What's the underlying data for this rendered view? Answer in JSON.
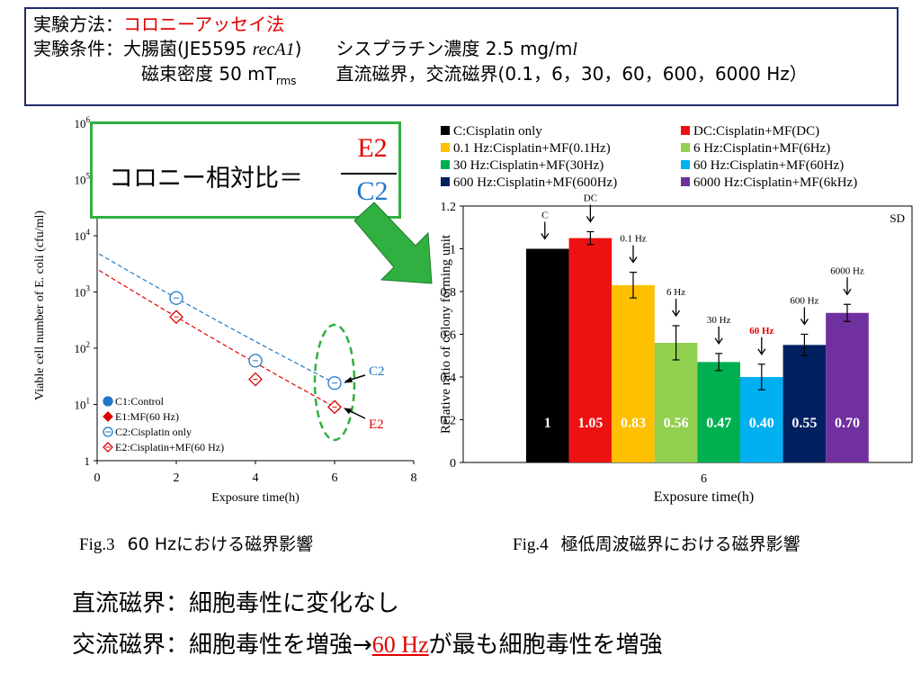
{
  "method_box": {
    "line1_label": "実験方法：",
    "line1_value": "コロニーアッセイ法",
    "line2_label": "実験条件：",
    "line2_organism": "大腸菌(JE5595 ",
    "line2_strain": "recA1",
    "line2_close": ")",
    "line2_cisplatin": "シスプラチン濃度 2.5 mg/m",
    "line2_unit_l": "l",
    "line3_density": "磁束密度 50 mT",
    "line3_rms": "rms",
    "line3_fields": "直流磁界，交流磁界(0.1，6，30，60，600，6000 Hz）"
  },
  "ratio_box": {
    "label": "コロニー相対比＝",
    "numerator": "E2",
    "denominator": "C2"
  },
  "colors": {
    "box_border": "#1f2a6b",
    "green": "#2fb040",
    "red": "#e00000",
    "blue": "#1f78c8"
  },
  "chart_data": [
    {
      "type": "scatter",
      "ylabel": "Viable cell number of E. coli (cfu/ml)",
      "xlabel": "Exposure time(h)",
      "xlim": [
        0,
        8
      ],
      "x_ticks": [
        "0",
        "2",
        "4",
        "6",
        "8"
      ],
      "y_scale": "log",
      "ylim": [
        1,
        1000000
      ],
      "y_ticks": [
        {
          "base": "1",
          "exp": ""
        },
        {
          "base": "10",
          "exp": "1"
        },
        {
          "base": "10",
          "exp": "2"
        },
        {
          "base": "10",
          "exp": "3"
        },
        {
          "base": "10",
          "exp": "4"
        },
        {
          "base": "10",
          "exp": "5"
        },
        {
          "base": "10",
          "exp": "6"
        }
      ],
      "legend_placement": "bottom-left",
      "series": [
        {
          "name": "C1:Control",
          "marker": "filled-circle",
          "color": "#1f78c8",
          "x": [],
          "y": []
        },
        {
          "name": "E1:MF(60 Hz)",
          "marker": "filled-diamond",
          "color": "#e00000",
          "x": [],
          "y": []
        },
        {
          "name": "C2:Cisplatin only",
          "marker": "open-circle",
          "color": "#1f78c8",
          "x": [
            2,
            4,
            6
          ],
          "y": [
            780,
            60,
            24
          ]
        },
        {
          "name": "E2:Cisplatin+MF(60 Hz)",
          "marker": "open-diamond",
          "color": "#e00000",
          "x": [
            2,
            4,
            6
          ],
          "y": [
            360,
            28,
            9
          ]
        }
      ],
      "annotations": {
        "c2_label": "C2",
        "e2_label": "E2"
      }
    },
    {
      "type": "bar",
      "ylabel": "Relative ratio of colony forming unit",
      "xlabel": "Exposure time(h)",
      "categories": [
        "6"
      ],
      "ylim": [
        0,
        1.2
      ],
      "y_ticks": [
        "0",
        "0.2",
        "0.4",
        "0.6",
        "0.8",
        "1",
        "1.2"
      ],
      "corner_label": "SD",
      "legend_placement": "top",
      "series": [
        {
          "name": "C:Cisplatin only",
          "label": "C",
          "value": 1.0,
          "error": 0,
          "display": "1",
          "color": "#000000",
          "label_red": false
        },
        {
          "name": "DC:Cisplatin+MF(DC)",
          "label": "DC",
          "value": 1.05,
          "error": 0.03,
          "display": "1.05",
          "color": "#ee1111",
          "label_red": false
        },
        {
          "name": "0.1 Hz:Cisplatin+MF(0.1Hz)",
          "label": "0.1 Hz",
          "value": 0.83,
          "error": 0.06,
          "display": "0.83",
          "color": "#ffc000",
          "label_red": false
        },
        {
          "name": "6 Hz:Cisplatin+MF(6Hz)",
          "label": "6 Hz",
          "value": 0.56,
          "error": 0.08,
          "display": "0.56",
          "color": "#92d050",
          "label_red": false
        },
        {
          "name": "30 Hz:Cisplatin+MF(30Hz)",
          "label": "30 Hz",
          "value": 0.47,
          "error": 0.04,
          "display": "0.47",
          "color": "#00b050",
          "label_red": false
        },
        {
          "name": "60 Hz:Cisplatin+MF(60Hz)",
          "label": "60 Hz",
          "value": 0.4,
          "error": 0.06,
          "display": "0.40",
          "color": "#00b0f0",
          "label_red": true
        },
        {
          "name": "600 Hz:Cisplatin+MF(600Hz)",
          "label": "600 Hz",
          "value": 0.55,
          "error": 0.05,
          "display": "0.55",
          "color": "#002060",
          "label_red": false
        },
        {
          "name": "6000 Hz:Cisplatin+MF(6kHz)",
          "label": "6000 Hz",
          "value": 0.7,
          "error": 0.04,
          "display": "0.70",
          "color": "#7030a0",
          "label_red": false
        }
      ]
    }
  ],
  "captions": {
    "fig3_prefix": "Fig.3",
    "fig3_text": "60 Hzにおける磁界影響",
    "fig4_prefix": "Fig.4",
    "fig4_text": "極低周波磁界における磁界影響"
  },
  "conclusion": {
    "line1": "直流磁界：細胞毒性に変化なし",
    "line2_prefix": "交流磁界：細胞毒性を増強→",
    "line2_highlight": "60 Hz",
    "line2_suffix": "が最も細胞毒性を増強"
  }
}
